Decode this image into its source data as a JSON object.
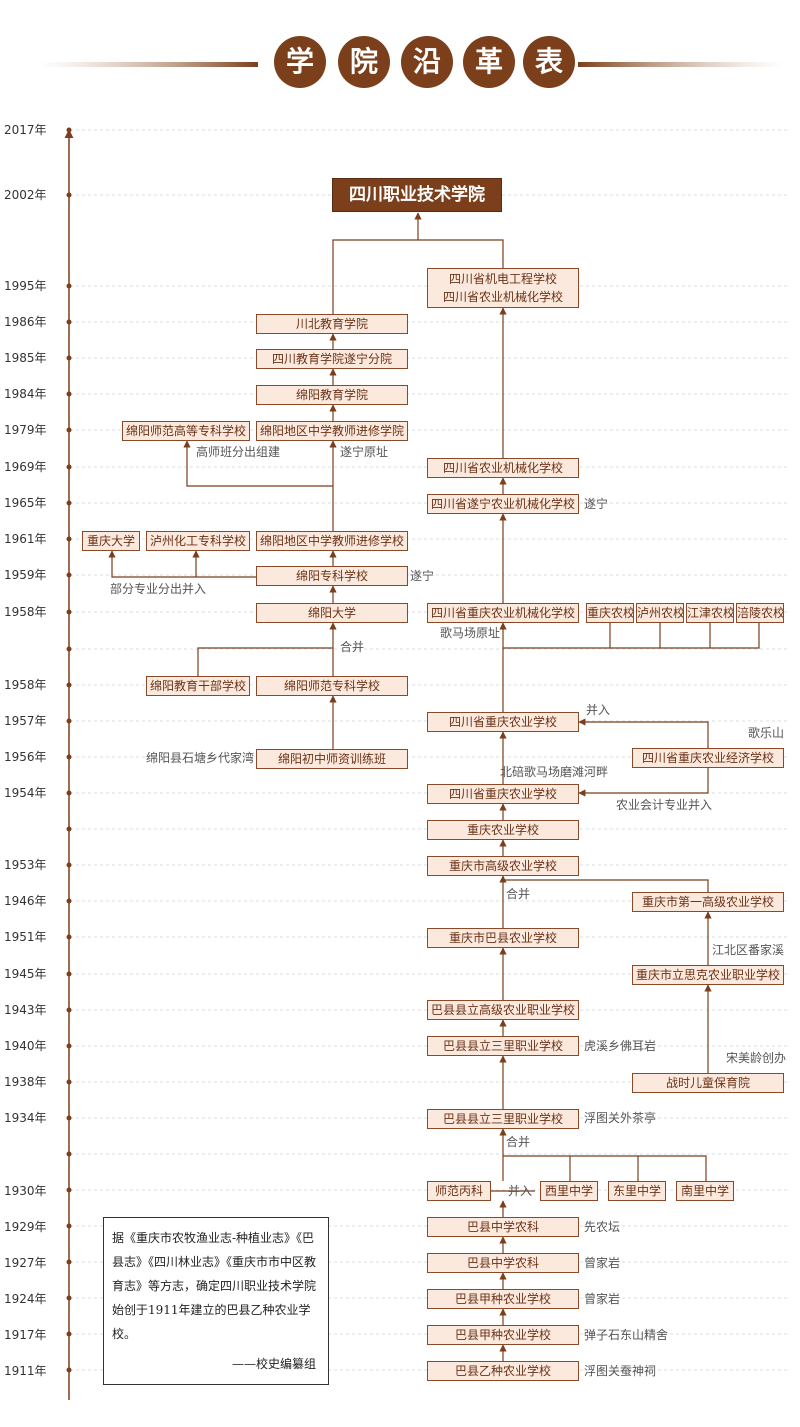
{
  "title": {
    "chars": [
      "学",
      "院",
      "沿",
      "革",
      "表"
    ]
  },
  "years": [
    "2017年",
    "2002年",
    "1995年",
    "1986年",
    "1985年",
    "1984年",
    "1979年",
    "1969年",
    "1965年",
    "1961年",
    "1959年",
    "1958年",
    "1958年",
    "1957年",
    "1956年",
    "1954年",
    "1953年",
    "1946年",
    "1951年",
    "1945年",
    "1943年",
    "1940年",
    "1938年",
    "1934年",
    "1930年",
    "1929年",
    "1927年",
    "1924年",
    "1917年",
    "1911年"
  ],
  "boxes": {
    "main": "四川职业技术学院",
    "jidian_1": "四川省机电工程学校",
    "jidian_2": "四川省农业机械化学校",
    "chuanbei": "川北教育学院",
    "suining_branch": "四川教育学院遂宁分院",
    "mianyang_edu": "绵阳教育学院",
    "mianyang_normal_college": "绵阳师范高等专科学校",
    "teacher_adv_1979": "绵阳地区中学教师进修学院",
    "nongji_1969": "四川省农业机械化学校",
    "suining_nongji": "四川省遂宁农业机械化学校",
    "chongqing_univ": "重庆大学",
    "luzhou_chem": "泸州化工专科学校",
    "teacher_adv_1961": "绵阳地区中学教师进修学校",
    "mianyang_zhuanke": "绵阳专科学校",
    "mianyang_univ": "绵阳大学",
    "cq_nongji_1958": "四川省重庆农业机械化学校",
    "cq_nongxiao": "重庆农校",
    "luzhou_nongxiao": "泸州农校",
    "jiangjin_nongxiao": "江津农校",
    "fuling_nongxiao": "涪陵农校",
    "mianyang_cadre": "绵阳教育干部学校",
    "mianyang_normal_school": "绵阳师范专科学校",
    "cq_agri_1957": "四川省重庆农业学校",
    "mianyang_junior": "绵阳初中师资训练班",
    "cq_econ": "四川省重庆农业经济学校",
    "cq_agri_1954": "四川省重庆农业学校",
    "chongqing_agri": "重庆农业学校",
    "cq_senior_agri": "重庆市高级农业学校",
    "cq_first_senior": "重庆市第一高级农业学校",
    "cq_baxian": "重庆市巴县农业学校",
    "sike": "重庆市立思克农业职业学校",
    "baxian_senior": "巴县县立高级农业职业学校",
    "sanli_1940": "巴县县立三里职业学校",
    "wartime": "战时儿童保育院",
    "sanli_1934": "巴县县立三里职业学校",
    "shifan_bing": "师范丙科",
    "xili": "西里中学",
    "dongli": "东里中学",
    "nanli": "南里中学",
    "baxian_nongke_1929": "巴县中学农科",
    "baxian_nongke_1927": "巴县中学农科",
    "jiazhong_1924": "巴县甲种农业学校",
    "jiazhong_1917": "巴县甲种农业学校",
    "yizhong_1911": "巴县乙种农业学校"
  },
  "notes": {
    "gaoshi": "高师班分出组建",
    "suining_site": "遂宁原址",
    "suining_1965": "遂宁",
    "partial": "部分专业分出并入",
    "suining_1959": "遂宁",
    "gemachang": "歌马场原址",
    "hebing_1958": "合并",
    "bingru_1957": "并入",
    "geleshan": "歌乐山",
    "shitang": "绵阳县石塘乡代家湾",
    "beibei": "北碚歌马场磨滩河畔",
    "kuaiji": "农业会计专业并入",
    "hebing_1946": "合并",
    "jiangbei": "江北区番家溪",
    "huxi": "虎溪乡佛耳岩",
    "songmeiling": "宋美龄创办",
    "futu_1934": "浮图关外茶亭",
    "hebing_1934": "合并",
    "bingru_1930": "并入",
    "xiannongtan": "先农坛",
    "zengjiayan_1927": "曾家岩",
    "zengjiayan_1924": "曾家岩",
    "danzishi": "弹子石东山精舍",
    "futu_1911": "浮图关蚕神祠"
  },
  "citation": {
    "text": "据《重庆市农牧渔业志-种植业志》《巴县志》《四川林业志》《重庆市市中区教育志》等方志，确定四川职业技术学院始创于1911年建立的巴县乙种农业学校。",
    "signature": "——校史编纂组"
  },
  "colors": {
    "brown": "#7b3f1c",
    "box_fill": "#fbe9dd",
    "box_border": "#8a4a2a",
    "grid": "#d7dde6"
  }
}
